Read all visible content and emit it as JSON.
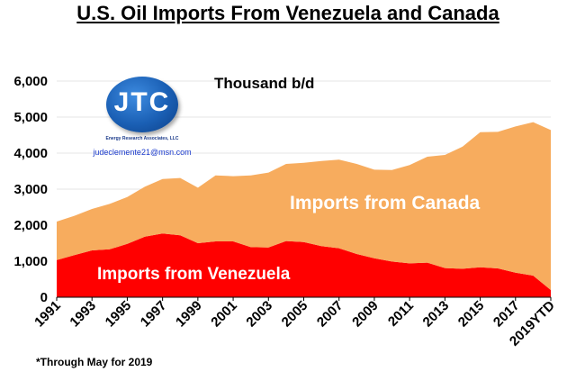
{
  "chart_data": {
    "type": "area",
    "title": "U.S. Oil Imports From Venezuela and Canada",
    "ylabel_unit": "Thousand b/d",
    "stacked": true,
    "ylim": [
      0,
      6000
    ],
    "yticks": [
      "6,000",
      "5,000",
      "4,000",
      "3,000",
      "2,000",
      "1,000",
      "0"
    ],
    "categories": [
      "1991",
      "1992",
      "1993",
      "1994",
      "1995",
      "1996",
      "1997",
      "1998",
      "1999",
      "2000",
      "2001",
      "2002",
      "2003",
      "2004",
      "2005",
      "2006",
      "2007",
      "2008",
      "2009",
      "2010",
      "2011",
      "2012",
      "2013",
      "2014",
      "2015",
      "2016",
      "2017",
      "2018",
      "2019YTD"
    ],
    "xtick_labels": [
      "1991",
      "1993",
      "1995",
      "1997",
      "1999",
      "2001",
      "2003",
      "2005",
      "2007",
      "2009",
      "2011",
      "2013",
      "2015",
      "2017",
      "2019YTD"
    ],
    "series": [
      {
        "name": "Imports from Venezuela",
        "color": "#ff0000",
        "values": [
          1030,
          1170,
          1300,
          1330,
          1480,
          1680,
          1770,
          1720,
          1500,
          1550,
          1550,
          1390,
          1380,
          1560,
          1530,
          1420,
          1360,
          1200,
          1080,
          990,
          940,
          960,
          810,
          790,
          830,
          800,
          680,
          600,
          200
        ]
      },
      {
        "name": "Imports from Canada",
        "color": "#f7ac5e",
        "values": [
          1070,
          1090,
          1150,
          1260,
          1300,
          1390,
          1510,
          1590,
          1540,
          1830,
          1810,
          1990,
          2080,
          2140,
          2200,
          2360,
          2460,
          2500,
          2460,
          2540,
          2730,
          2940,
          3140,
          3390,
          3750,
          3790,
          4060,
          4260,
          4440
        ]
      }
    ]
  },
  "labels": {
    "canada": "Imports from Canada",
    "venezuela": "Imports from Venezuela"
  },
  "logo": {
    "text": "JTC",
    "subtitle": "Energy Research Associates, LLC",
    "email": "judeclemente21@msn.com"
  },
  "footnote": "*Through May for 2019"
}
